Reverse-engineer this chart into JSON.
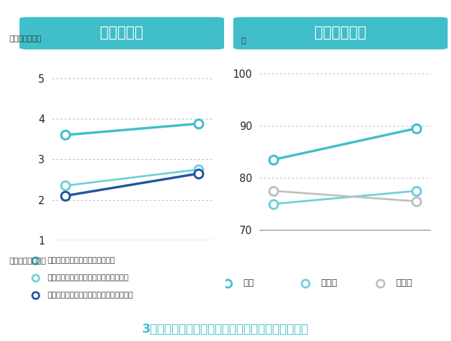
{
  "left_title": "意識の変化",
  "right_title": "平均点の変化",
  "left_ylabel_top": "とてもそう思う",
  "left_ylabel_bottom": "全くそう思わない",
  "right_ylabel_unit": "点",
  "left_yticks": [
    1,
    2,
    3,
    4,
    5
  ],
  "left_ylim": [
    1,
    5.5
  ],
  "right_yticks": [
    70,
    80,
    90,
    100
  ],
  "right_ylim": [
    68,
    103
  ],
  "left_series": [
    {
      "label": "歩くことは楽しいと思いますか？",
      "x": [
        0,
        1
      ],
      "y": [
        3.6,
        3.88
      ],
      "color": "#40bec9",
      "lw": 2.5
    },
    {
      "label": "自分が綺麗に歩けていると思いますか？",
      "x": [
        0,
        1
      ],
      "y": [
        2.35,
        2.75
      ],
      "color": "#6dd0da",
      "lw": 2.0
    },
    {
      "label": "歩いている時の自分に自信を持てますか？",
      "x": [
        0,
        1
      ],
      "y": [
        2.1,
        2.65
      ],
      "color": "#2255a0",
      "lw": 2.5
    }
  ],
  "right_series": [
    {
      "label": "姿勢",
      "x": [
        0,
        1
      ],
      "y": [
        83.5,
        89.5
      ],
      "color": "#40bec9",
      "lw": 2.5
    },
    {
      "label": "腕振り",
      "x": [
        0,
        1
      ],
      "y": [
        75.0,
        77.5
      ],
      "color": "#6dd0da",
      "lw": 2.0
    },
    {
      "label": "足運び",
      "x": [
        0,
        1
      ],
      "y": [
        77.5,
        75.5
      ],
      "color": "#c0c0c0",
      "lw": 2.0
    }
  ],
  "left_legend": [
    {
      "label": "歩くことは楽しいと思いますか？",
      "color": "#40bec9"
    },
    {
      "label": "自分が綺麗に歩けていると思いますか？",
      "color": "#6dd0da"
    },
    {
      "label": "歩いている時の自分に自信を持てますか？",
      "color": "#2255a0"
    }
  ],
  "right_legend": [
    {
      "label": "姿勢",
      "color": "#40bec9"
    },
    {
      "label": "腕振り",
      "color": "#6dd0da"
    },
    {
      "label": "足運び",
      "color": "#c0c0c0"
    }
  ],
  "footer_text": "3つの意識、姿勢、腕振りに有意な改善がみられた",
  "title_bg_color": "#40bec9",
  "title_text_color": "#ffffff",
  "footer_color": "#40bec9",
  "background_color": "#ffffff",
  "grid_color": "#bbbbbb",
  "xlim": [
    -0.1,
    1.1
  ]
}
